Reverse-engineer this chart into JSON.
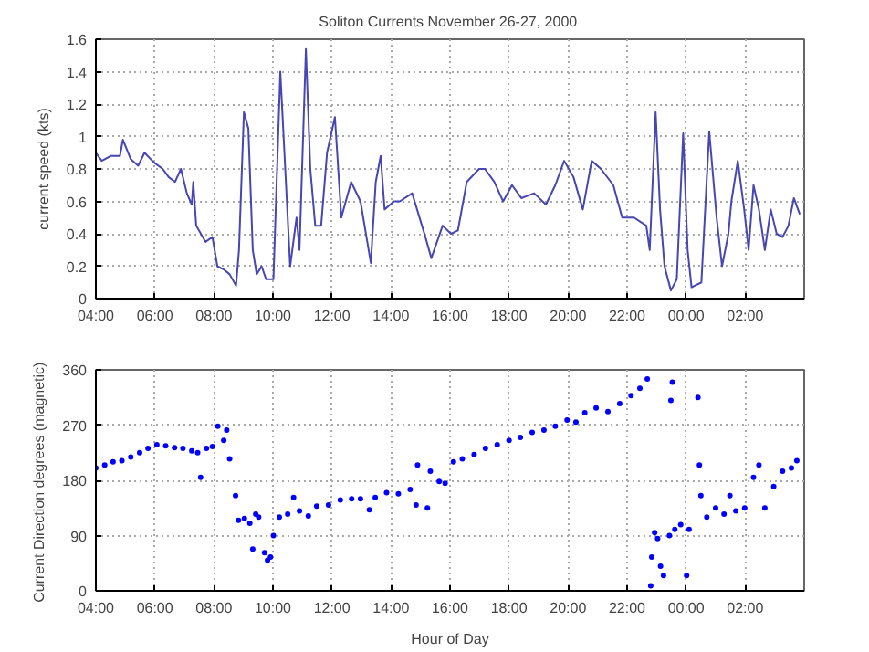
{
  "chart_data": [
    {
      "type": "line",
      "title": "Soliton Currents  November 26-27, 2000",
      "ylabel": "current speed (kts)",
      "xlim": [
        "2000-11-26T04:00",
        "2000-11-27T04:00"
      ],
      "ylim": [
        0,
        1.6
      ],
      "xticks": [
        {
          "value": "2000-11-26T04:00",
          "label": "04:00"
        },
        {
          "value": "2000-11-26T06:00",
          "label": "06:00"
        },
        {
          "value": "2000-11-26T08:00",
          "label": "08:00"
        },
        {
          "value": "2000-11-26T10:00",
          "label": "10:00"
        },
        {
          "value": "2000-11-26T12:00",
          "label": "12:00"
        },
        {
          "value": "2000-11-26T14:00",
          "label": "14:00"
        },
        {
          "value": "2000-11-26T16:00",
          "label": "16:00"
        },
        {
          "value": "2000-11-26T18:00",
          "label": "18:00"
        },
        {
          "value": "2000-11-26T20:00",
          "label": "20:00"
        },
        {
          "value": "2000-11-26T22:00",
          "label": "22:00"
        },
        {
          "value": "2000-11-27T00:00",
          "label": "00:00"
        },
        {
          "value": "2000-11-27T02:00",
          "label": "02:00"
        }
      ],
      "yticks": [
        0,
        0.2,
        0.4,
        0.6,
        0.8,
        1,
        1.2,
        1.4,
        1.6
      ],
      "grid": true,
      "line_style": "solid",
      "x": [
        "2000-11-26T04:00",
        "2000-11-26T04:12",
        "2000-11-26T04:30",
        "2000-11-26T04:49",
        "2000-11-26T04:55",
        "2000-11-26T05:11",
        "2000-11-26T05:26",
        "2000-11-26T05:39",
        "2000-11-26T05:58",
        "2000-11-26T06:16",
        "2000-11-26T06:28",
        "2000-11-26T06:41",
        "2000-11-26T06:53",
        "2000-11-26T07:05",
        "2000-11-26T07:15",
        "2000-11-26T07:18",
        "2000-11-26T07:24",
        "2000-11-26T07:43",
        "2000-11-26T07:57",
        "2000-11-26T08:07",
        "2000-11-26T08:20",
        "2000-11-26T08:32",
        "2000-11-26T08:45",
        "2000-11-26T08:51",
        "2000-11-26T09:01",
        "2000-11-26T09:10",
        "2000-11-26T09:19",
        "2000-11-26T09:27",
        "2000-11-26T09:37",
        "2000-11-26T09:46",
        "2000-11-26T10:01",
        "2000-11-26T10:15",
        "2000-11-26T10:25",
        "2000-11-26T10:35",
        "2000-11-26T10:48",
        "2000-11-26T10:54",
        "2000-11-26T11:07",
        "2000-11-26T11:16",
        "2000-11-26T11:26",
        "2000-11-26T11:38",
        "2000-11-26T11:50",
        "2000-11-26T12:06",
        "2000-11-26T12:19",
        "2000-11-26T12:39",
        "2000-11-26T12:58",
        "2000-11-26T13:19",
        "2000-11-26T13:29",
        "2000-11-26T13:39",
        "2000-11-26T13:47",
        "2000-11-26T14:06",
        "2000-11-26T14:18",
        "2000-11-26T14:43",
        "2000-11-26T15:08",
        "2000-11-26T15:22",
        "2000-11-26T15:45",
        "2000-11-26T16:02",
        "2000-11-26T16:16",
        "2000-11-26T16:34",
        "2000-11-26T16:59",
        "2000-11-26T17:11",
        "2000-11-26T17:30",
        "2000-11-26T17:48",
        "2000-11-26T18:06",
        "2000-11-26T18:25",
        "2000-11-26T18:51",
        "2000-11-26T19:15",
        "2000-11-26T19:34",
        "2000-11-26T19:52",
        "2000-11-26T20:11",
        "2000-11-26T20:30",
        "2000-11-26T20:48",
        "2000-11-26T21:07",
        "2000-11-26T21:32",
        "2000-11-26T21:50",
        "2000-11-26T22:14",
        "2000-11-26T22:39",
        "2000-11-26T22:46",
        "2000-11-26T22:58",
        "2000-11-26T23:07",
        "2000-11-26T23:16",
        "2000-11-26T23:29",
        "2000-11-26T23:41",
        "2000-11-26T23:54",
        "2000-11-27T00:03",
        "2000-11-27T00:11",
        "2000-11-27T00:31",
        "2000-11-27T00:47",
        "2000-11-27T01:02",
        "2000-11-27T01:13",
        "2000-11-27T01:26",
        "2000-11-27T01:32",
        "2000-11-27T01:45",
        "2000-11-27T01:58",
        "2000-11-27T02:07",
        "2000-11-27T02:17",
        "2000-11-27T02:28",
        "2000-11-27T02:40",
        "2000-11-27T02:52",
        "2000-11-27T03:04",
        "2000-11-27T03:16",
        "2000-11-27T03:28",
        "2000-11-27T03:39",
        "2000-11-27T03:51"
      ],
      "series": [
        {
          "color": "#4646b4",
          "values": [
            0.9,
            0.85,
            0.88,
            0.88,
            0.98,
            0.86,
            0.82,
            0.9,
            0.84,
            0.8,
            0.75,
            0.72,
            0.8,
            0.65,
            0.58,
            0.72,
            0.45,
            0.35,
            0.38,
            0.2,
            0.18,
            0.15,
            0.08,
            0.3,
            1.15,
            1.05,
            0.3,
            0.15,
            0.2,
            0.12,
            0.12,
            1.4,
            0.8,
            0.2,
            0.5,
            0.3,
            1.54,
            0.8,
            0.45,
            0.45,
            0.9,
            1.12,
            0.5,
            0.72,
            0.6,
            0.22,
            0.72,
            0.88,
            0.55,
            0.6,
            0.6,
            0.65,
            0.4,
            0.25,
            0.45,
            0.4,
            0.42,
            0.72,
            0.8,
            0.8,
            0.72,
            0.6,
            0.7,
            0.62,
            0.65,
            0.58,
            0.7,
            0.85,
            0.75,
            0.55,
            0.85,
            0.8,
            0.7,
            0.5,
            0.5,
            0.45,
            0.3,
            1.15,
            0.55,
            0.2,
            0.05,
            0.12,
            1.02,
            0.3,
            0.07,
            0.1,
            1.03,
            0.5,
            0.2,
            0.4,
            0.6,
            0.85,
            0.55,
            0.3,
            0.7,
            0.55,
            0.3,
            0.55,
            0.4,
            0.38,
            0.45,
            0.62,
            0.52
          ]
        }
      ]
    },
    {
      "type": "scatter",
      "xlabel": "Hour of Day",
      "ylabel": "Current Direction  degrees (magnetic)",
      "xlim": [
        "2000-11-26T04:00",
        "2000-11-27T04:00"
      ],
      "ylim": [
        0,
        360
      ],
      "xticks": [
        {
          "value": "2000-11-26T04:00",
          "label": "04:00"
        },
        {
          "value": "2000-11-26T06:00",
          "label": "06:00"
        },
        {
          "value": "2000-11-26T08:00",
          "label": "08:00"
        },
        {
          "value": "2000-11-26T10:00",
          "label": "10:00"
        },
        {
          "value": "2000-11-26T12:00",
          "label": "12:00"
        },
        {
          "value": "2000-11-26T14:00",
          "label": "14:00"
        },
        {
          "value": "2000-11-26T16:00",
          "label": "16:00"
        },
        {
          "value": "2000-11-26T18:00",
          "label": "18:00"
        },
        {
          "value": "2000-11-26T20:00",
          "label": "20:00"
        },
        {
          "value": "2000-11-26T22:00",
          "label": "22:00"
        },
        {
          "value": "2000-11-27T00:00",
          "label": "00:00"
        },
        {
          "value": "2000-11-27T02:00",
          "label": "02:00"
        }
      ],
      "yticks": [
        0,
        90,
        180,
        270,
        360
      ],
      "grid": true,
      "marker": "circle",
      "x": [
        "2000-11-26T04:00",
        "2000-11-26T04:18",
        "2000-11-26T04:35",
        "2000-11-26T04:53",
        "2000-11-26T05:11",
        "2000-11-26T05:29",
        "2000-11-26T05:46",
        "2000-11-26T06:04",
        "2000-11-26T06:22",
        "2000-11-26T06:40",
        "2000-11-26T06:57",
        "2000-11-26T07:15",
        "2000-11-26T07:27",
        "2000-11-26T07:33",
        "2000-11-26T07:45",
        "2000-11-26T07:57",
        "2000-11-26T08:08",
        "2000-11-26T08:20",
        "2000-11-26T08:26",
        "2000-11-26T08:32",
        "2000-11-26T08:44",
        "2000-11-26T08:50",
        "2000-11-26T09:02",
        "2000-11-26T09:13",
        "2000-11-26T09:19",
        "2000-11-26T09:25",
        "2000-11-26T09:31",
        "2000-11-26T09:43",
        "2000-11-26T09:49",
        "2000-11-26T09:55",
        "2000-11-26T10:01",
        "2000-11-26T10:13",
        "2000-11-26T10:30",
        "2000-11-26T10:42",
        "2000-11-26T10:54",
        "2000-11-26T11:12",
        "2000-11-26T11:29",
        "2000-11-26T11:53",
        "2000-11-26T12:17",
        "2000-11-26T12:40",
        "2000-11-26T12:58",
        "2000-11-26T13:16",
        "2000-11-26T13:28",
        "2000-11-26T13:51",
        "2000-11-26T14:15",
        "2000-11-26T14:39",
        "2000-11-26T14:51",
        "2000-11-26T14:54",
        "2000-11-26T15:14",
        "2000-11-26T15:20",
        "2000-11-26T15:38",
        "2000-11-26T15:50",
        "2000-11-26T16:07",
        "2000-11-26T16:25",
        "2000-11-26T16:49",
        "2000-11-26T17:12",
        "2000-11-26T17:36",
        "2000-11-26T18:00",
        "2000-11-26T18:23",
        "2000-11-26T18:47",
        "2000-11-26T19:11",
        "2000-11-26T19:34",
        "2000-11-26T19:58",
        "2000-11-26T20:16",
        "2000-11-26T20:34",
        "2000-11-26T20:57",
        "2000-11-26T21:21",
        "2000-11-26T21:45",
        "2000-11-26T22:08",
        "2000-11-26T22:26",
        "2000-11-26T22:41",
        "2000-11-26T22:48",
        "2000-11-26T22:50",
        "2000-11-26T22:56",
        "2000-11-26T23:02",
        "2000-11-26T23:08",
        "2000-11-26T23:14",
        "2000-11-26T23:29",
        "2000-11-26T23:32",
        "2000-11-26T23:26",
        "2000-11-26T23:37",
        "2000-11-26T23:49",
        "2000-11-27T00:01",
        "2000-11-27T00:06",
        "2000-11-27T00:24",
        "2000-11-27T00:27",
        "2000-11-27T00:30",
        "2000-11-27T00:42",
        "2000-11-27T01:00",
        "2000-11-27T01:17",
        "2000-11-27T01:29",
        "2000-11-27T01:41",
        "2000-11-27T01:59",
        "2000-11-27T02:17",
        "2000-11-27T02:28",
        "2000-11-27T02:40",
        "2000-11-27T02:58",
        "2000-11-27T03:16",
        "2000-11-27T03:34",
        "2000-11-27T03:45"
      ],
      "series": [
        {
          "color": "#0000ff",
          "values": [
            200,
            205,
            210,
            212,
            218,
            225,
            232,
            238,
            236,
            233,
            232,
            228,
            225,
            185,
            232,
            235,
            268,
            245,
            262,
            215,
            155,
            115,
            118,
            110,
            68,
            125,
            120,
            62,
            50,
            55,
            90,
            120,
            125,
            152,
            130,
            122,
            138,
            140,
            148,
            150,
            150,
            132,
            152,
            160,
            158,
            165,
            140,
            205,
            135,
            195,
            178,
            175,
            210,
            215,
            222,
            232,
            238,
            245,
            250,
            258,
            262,
            268,
            278,
            275,
            290,
            298,
            292,
            305,
            318,
            330,
            345,
            8,
            55,
            95,
            85,
            40,
            25,
            310,
            340,
            90,
            100,
            108,
            25,
            100,
            315,
            205,
            155,
            120,
            135,
            125,
            155,
            130,
            135,
            185,
            205,
            135,
            170,
            195,
            200,
            212
          ]
        }
      ]
    }
  ]
}
